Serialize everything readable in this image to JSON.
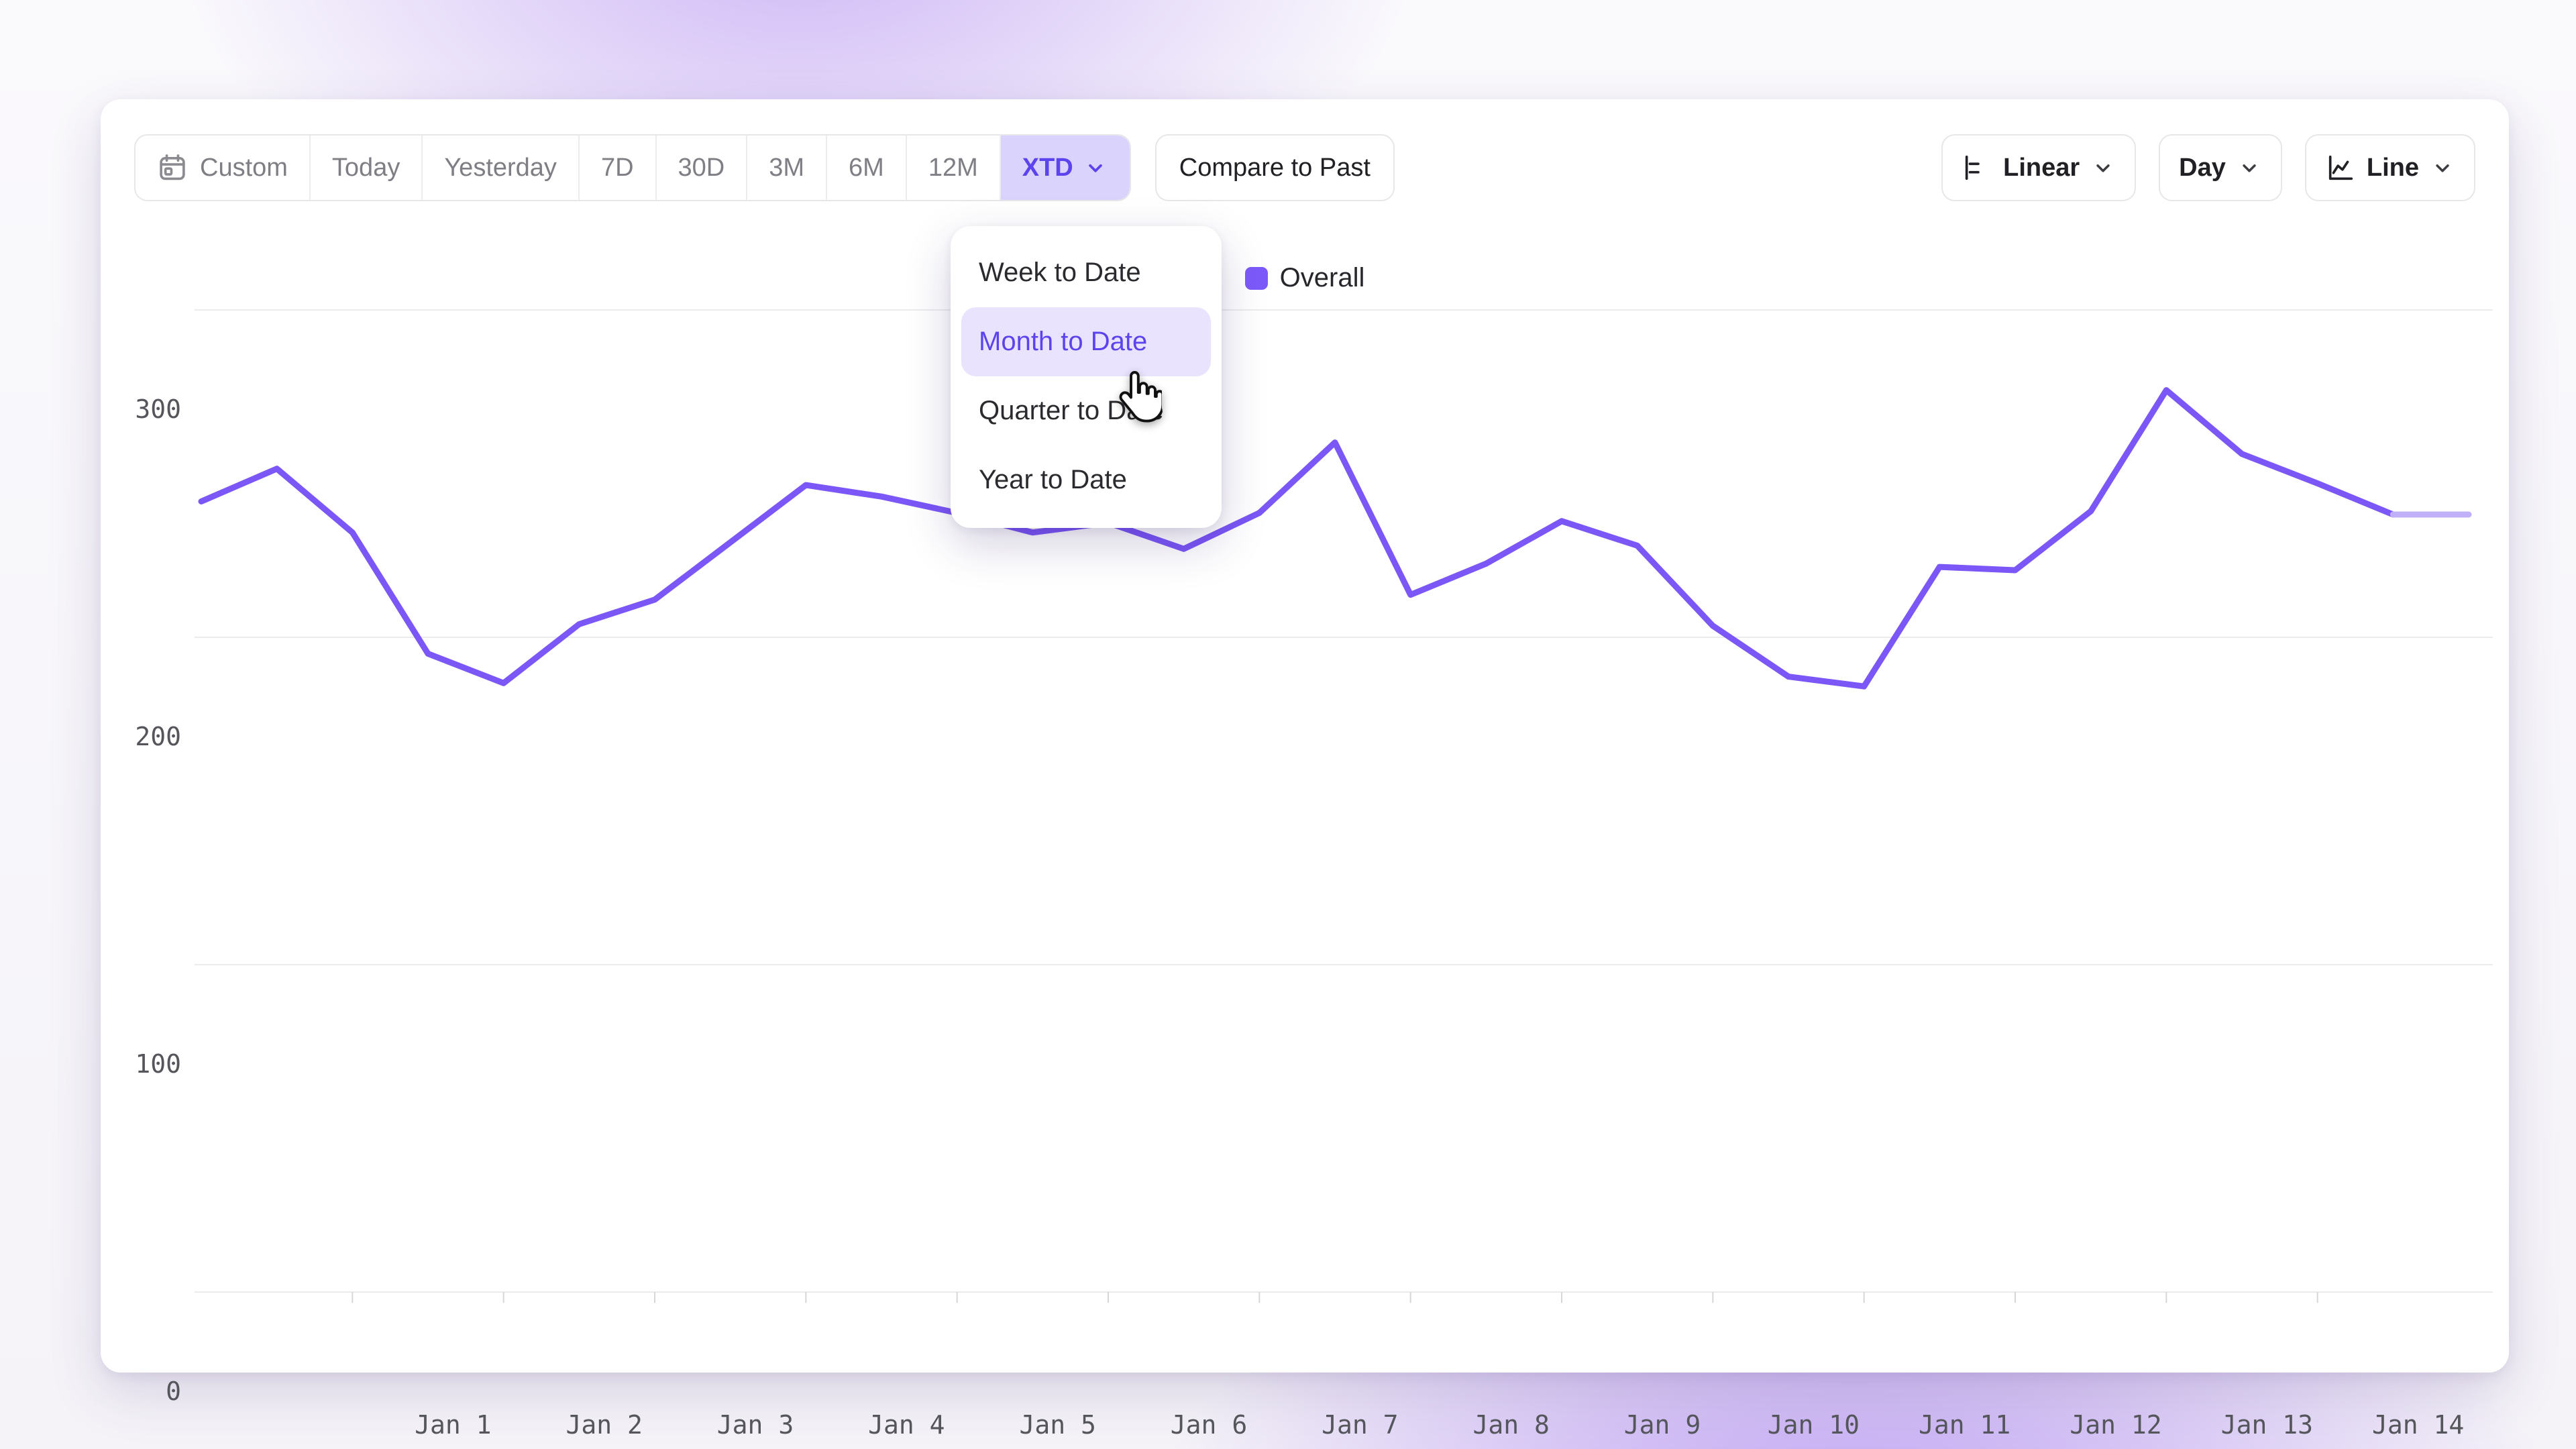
{
  "toolbar": {
    "ranges": [
      "Custom",
      "Today",
      "Yesterday",
      "7D",
      "30D",
      "3M",
      "6M",
      "12M",
      "XTD"
    ],
    "active_range": "XTD",
    "compare_label": "Compare to Past",
    "scale_label": "Linear",
    "granularity_label": "Day",
    "chart_type_label": "Line"
  },
  "dropdown": {
    "items": [
      "Week to Date",
      "Month to Date",
      "Quarter to Date",
      "Year to Date"
    ],
    "highlighted_item": "Month to Date"
  },
  "legend": {
    "label": "Overall"
  },
  "colors": {
    "accent": "#5b43ee",
    "accent_bg": "#dad3fb",
    "line": "#7a57f6",
    "line_incomplete": "#bfb0f9",
    "gridline": "#ececee",
    "tick": "#d6d6da",
    "axis_text": "#55555c"
  },
  "chart_data": {
    "type": "line",
    "title": "",
    "xlabel": "",
    "ylabel": "",
    "ylim": [
      0,
      300
    ],
    "y_ticks": [
      0,
      100,
      200,
      300
    ],
    "grid": "horizontal",
    "legend_position": "top-center",
    "day_labels": [
      "Jan 1",
      "Jan 2",
      "Jan 3",
      "Jan 4",
      "Jan 5",
      "Jan 6",
      "Jan 7",
      "Jan 8",
      "Jan 9",
      "Jan 10",
      "Jan 11",
      "Jan 12",
      "Jan 13",
      "Jan 14"
    ],
    "points_per_day": 2,
    "first_label_point_index": 2,
    "series": [
      {
        "name": "Overall",
        "values": [
          241.5,
          251.5,
          232,
          195,
          186,
          204,
          211.5,
          229,
          246.5,
          243,
          238,
          232,
          235,
          227,
          238,
          259.5,
          213,
          222.5,
          235.5,
          228,
          203.5,
          188,
          185,
          221.5,
          220.5,
          238.5,
          275.5,
          256,
          247,
          237.5,
          237.5
        ],
        "incomplete_tail_points": 1
      }
    ]
  }
}
